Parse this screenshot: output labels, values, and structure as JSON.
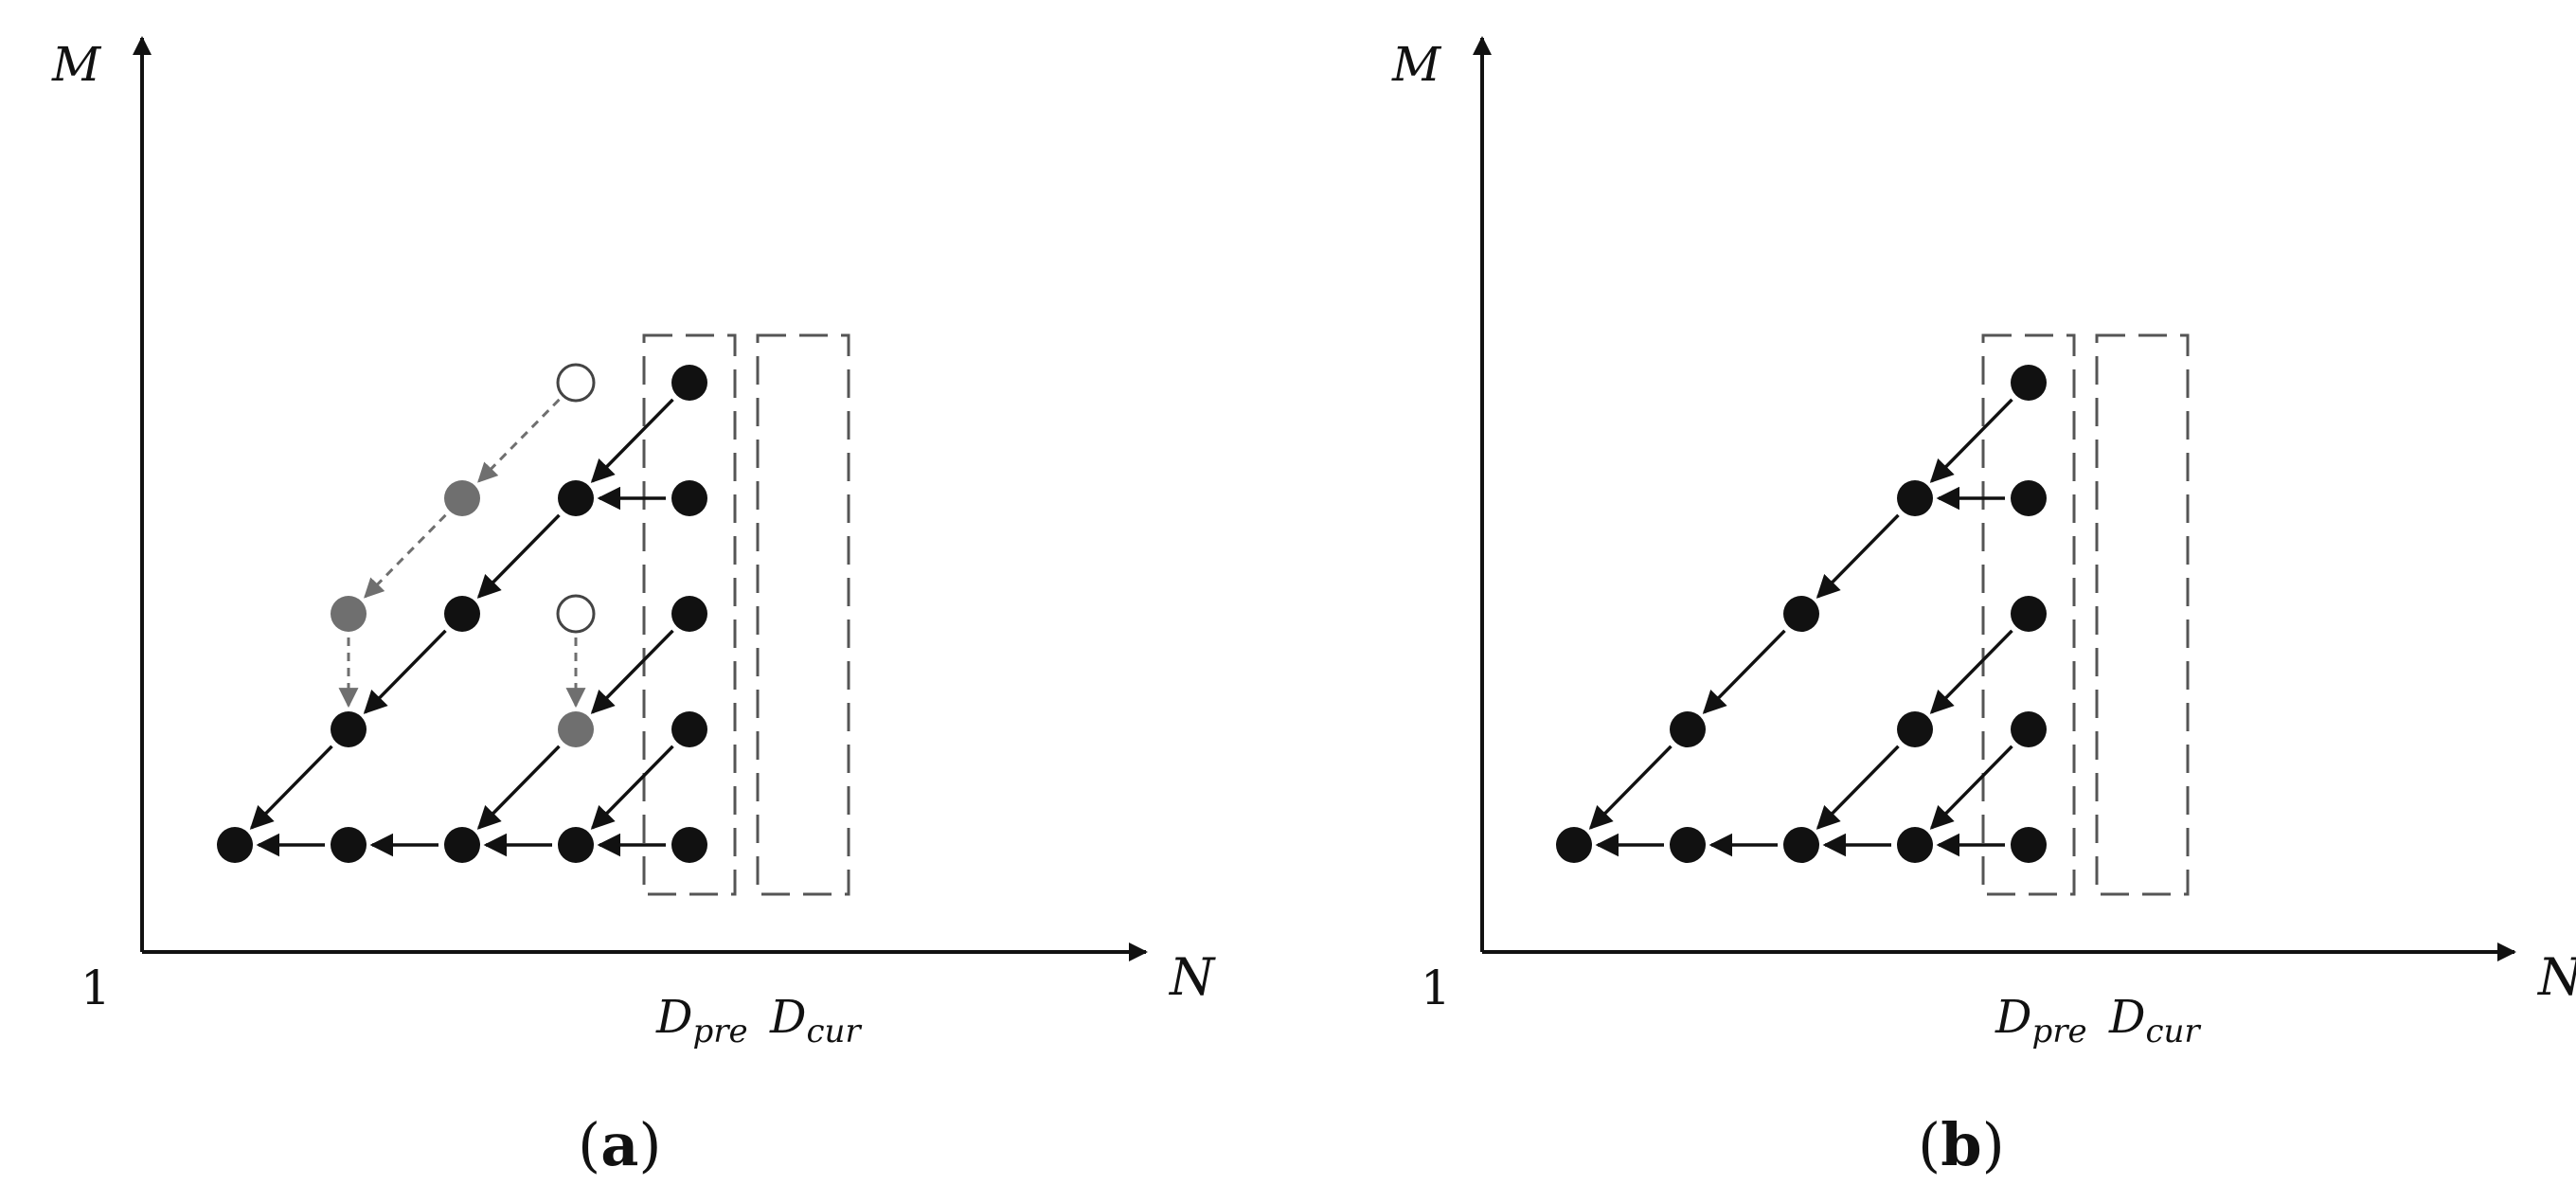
{
  "panels": [
    {
      "id": "a",
      "caption_open": "(",
      "caption_letter": "a",
      "caption_close": ")",
      "y_axis_label": "M",
      "x_axis_label": "N",
      "origin_label": "1",
      "window_labels": [
        {
          "main": "D",
          "sub": "pre"
        },
        {
          "main": "D",
          "sub": "cur"
        }
      ],
      "dashed_windows": [
        {
          "label_index": 0,
          "col_start": 4,
          "col_end": 4
        },
        {
          "label_index": 1,
          "col_start": 5,
          "col_end": 5
        }
      ],
      "nodes": [
        {
          "id": "r0c0",
          "col": 0,
          "row": 0,
          "style": "filled"
        },
        {
          "id": "r0c1",
          "col": 1,
          "row": 0,
          "style": "filled"
        },
        {
          "id": "r0c2",
          "col": 2,
          "row": 0,
          "style": "filled"
        },
        {
          "id": "r0c3",
          "col": 3,
          "row": 0,
          "style": "filled"
        },
        {
          "id": "r0c4",
          "col": 4,
          "row": 0,
          "style": "filled"
        },
        {
          "id": "r1c1",
          "col": 1,
          "row": 1,
          "style": "filled"
        },
        {
          "id": "r1c3",
          "col": 3,
          "row": 1,
          "style": "gray"
        },
        {
          "id": "r1c4",
          "col": 4,
          "row": 1,
          "style": "filled"
        },
        {
          "id": "r2c2",
          "col": 2,
          "row": 2,
          "style": "filled"
        },
        {
          "id": "r2c3",
          "col": 3,
          "row": 2,
          "style": "hollow"
        },
        {
          "id": "r2c4",
          "col": 4,
          "row": 2,
          "style": "filled"
        },
        {
          "id": "r2c1",
          "col": 1,
          "row": 2,
          "style": "gray"
        },
        {
          "id": "r3c2",
          "col": 2,
          "row": 3,
          "style": "gray"
        },
        {
          "id": "r3c3",
          "col": 3,
          "row": 3,
          "style": "filled"
        },
        {
          "id": "r3c4",
          "col": 4,
          "row": 3,
          "style": "filled"
        },
        {
          "id": "r4c3",
          "col": 3,
          "row": 4,
          "style": "hollow"
        },
        {
          "id": "r4c4",
          "col": 4,
          "row": 4,
          "style": "filled"
        }
      ],
      "edges": [
        {
          "from": "r0c4",
          "to": "r0c3",
          "style": "solid"
        },
        {
          "from": "r0c3",
          "to": "r0c2",
          "style": "solid"
        },
        {
          "from": "r0c2",
          "to": "r0c1",
          "style": "solid"
        },
        {
          "from": "r0c1",
          "to": "r0c0",
          "style": "solid"
        },
        {
          "from": "r1c4",
          "to": "r0c3",
          "style": "solid"
        },
        {
          "from": "r1c3",
          "to": "r0c2",
          "style": "solid"
        },
        {
          "from": "r1c1",
          "to": "r0c0",
          "style": "solid"
        },
        {
          "from": "r2c4",
          "to": "r1c3",
          "style": "solid"
        },
        {
          "from": "r2c3",
          "to": "r1c2_x",
          "style": "dashed"
        },
        {
          "from": "r2c2",
          "to": "r1c1",
          "style": "solid"
        },
        {
          "from": "r2c1",
          "to": "r1c1",
          "style": "dashed"
        },
        {
          "from": "r3c4",
          "to": "r3c3",
          "style": "solid"
        },
        {
          "from": "r3c3",
          "to": "r2c2",
          "style": "solid"
        },
        {
          "from": "r3c2",
          "to": "r2c1",
          "style": "dashed"
        },
        {
          "from": "r4c4",
          "to": "r3c3",
          "style": "solid"
        },
        {
          "from": "r4c3",
          "to": "r3c2",
          "style": "dashed"
        }
      ]
    },
    {
      "id": "b",
      "caption_open": "(",
      "caption_letter": "b",
      "caption_close": ")",
      "y_axis_label": "M",
      "x_axis_label": "N",
      "origin_label": "1",
      "window_labels": [
        {
          "main": "D",
          "sub": "pre"
        },
        {
          "main": "D",
          "sub": "cur"
        }
      ],
      "dashed_windows": [
        {
          "label_index": 0,
          "col_start": 4,
          "col_end": 4
        },
        {
          "label_index": 1,
          "col_start": 5,
          "col_end": 5
        }
      ],
      "nodes": [
        {
          "id": "r0c0",
          "col": 0,
          "row": 0,
          "style": "filled"
        },
        {
          "id": "r0c1",
          "col": 1,
          "row": 0,
          "style": "filled"
        },
        {
          "id": "r0c2",
          "col": 2,
          "row": 0,
          "style": "filled"
        },
        {
          "id": "r0c3",
          "col": 3,
          "row": 0,
          "style": "filled"
        },
        {
          "id": "r0c4",
          "col": 4,
          "row": 0,
          "style": "filled"
        },
        {
          "id": "r1c1",
          "col": 1,
          "row": 1,
          "style": "filled"
        },
        {
          "id": "r1c3",
          "col": 3,
          "row": 1,
          "style": "filled"
        },
        {
          "id": "r1c4",
          "col": 4,
          "row": 1,
          "style": "filled"
        },
        {
          "id": "r2c2",
          "col": 2,
          "row": 2,
          "style": "filled"
        },
        {
          "id": "r2c4",
          "col": 4,
          "row": 2,
          "style": "filled"
        },
        {
          "id": "r3c3",
          "col": 3,
          "row": 3,
          "style": "filled"
        },
        {
          "id": "r3c4",
          "col": 4,
          "row": 3,
          "style": "filled"
        },
        {
          "id": "r4c4",
          "col": 4,
          "row": 4,
          "style": "filled"
        }
      ],
      "edges": [
        {
          "from": "r0c4",
          "to": "r0c3",
          "style": "solid"
        },
        {
          "from": "r0c3",
          "to": "r0c2",
          "style": "solid"
        },
        {
          "from": "r0c2",
          "to": "r0c1",
          "style": "solid"
        },
        {
          "from": "r0c1",
          "to": "r0c0",
          "style": "solid"
        },
        {
          "from": "r1c4",
          "to": "r0c3",
          "style": "solid"
        },
        {
          "from": "r1c3",
          "to": "r0c2",
          "style": "solid"
        },
        {
          "from": "r1c1",
          "to": "r0c0",
          "style": "solid"
        },
        {
          "from": "r2c4",
          "to": "r1c3",
          "style": "solid"
        },
        {
          "from": "r2c2",
          "to": "r1c1",
          "style": "solid"
        },
        {
          "from": "r3c4",
          "to": "r3c3",
          "style": "solid"
        },
        {
          "from": "r3c3",
          "to": "r2c2",
          "style": "solid"
        },
        {
          "from": "r4c4",
          "to": "r3c3",
          "style": "solid"
        }
      ]
    }
  ]
}
